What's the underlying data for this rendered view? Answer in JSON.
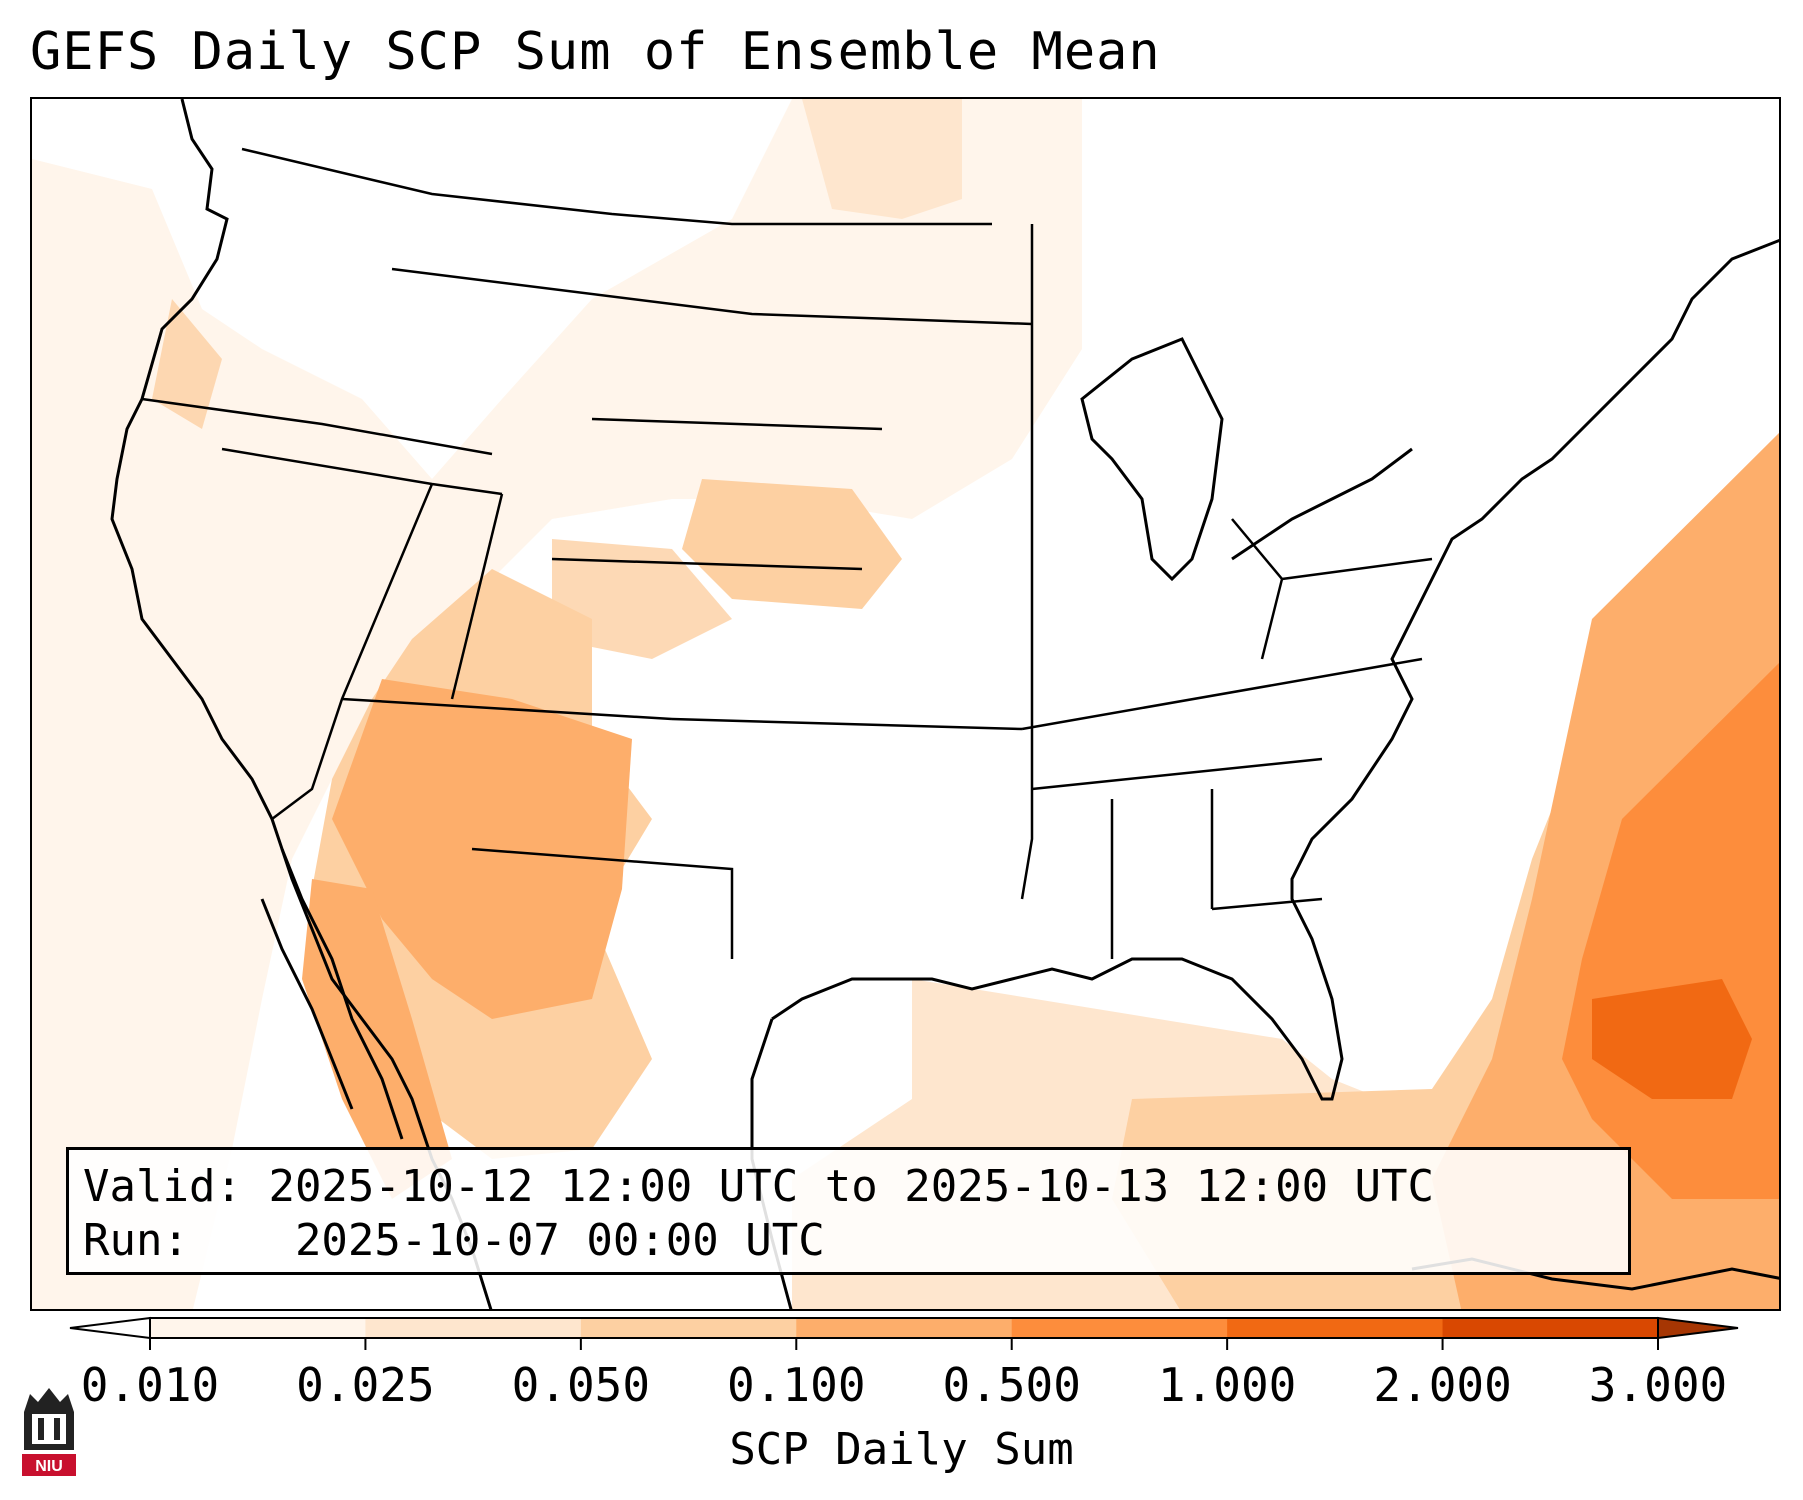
{
  "title": "GEFS Daily SCP Sum of Ensemble Mean",
  "info": {
    "valid_label": "Valid:",
    "valid_value": "2025-10-12 12:00 UTC to 2025-10-13 12:00 UTC",
    "run_label": "Run:",
    "run_value": "2025-10-07 00:00 UTC"
  },
  "colorbar": {
    "label": "SCP Daily Sum",
    "ticks": [
      "0.010",
      "0.025",
      "0.050",
      "0.100",
      "0.500",
      "1.000",
      "2.000",
      "3.000"
    ],
    "colors": [
      "#fff5eb",
      "#fee6ce",
      "#fdd0a2",
      "#fdae6b",
      "#fd8d3c",
      "#f16913",
      "#d94801",
      "#a63603"
    ],
    "extend": "both"
  },
  "logo": {
    "text": "NIU",
    "icon": "niu-logo-icon"
  }
}
